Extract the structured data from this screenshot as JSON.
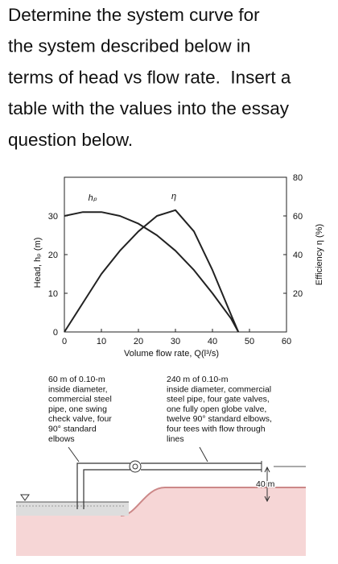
{
  "question": {
    "lines": [
      "Determine the system curve for",
      "the system described below in",
      "terms of head vs flow rate.  Insert a",
      "table with the values into the essay",
      "question below."
    ]
  },
  "chart_data": {
    "type": "line",
    "xlabel": "Volume flow rate, Q(l³/s)",
    "ylabel": "Head, hₚ (m)",
    "y2label": "Efficiency η (%)",
    "x": [
      0,
      5,
      10,
      15,
      20,
      25,
      30,
      35,
      40,
      45,
      47
    ],
    "series": [
      {
        "name": "hₚ",
        "color": "#222222",
        "values": [
          30,
          31,
          31,
          30,
          28,
          25,
          21,
          16,
          10,
          3.5,
          0
        ]
      },
      {
        "name": "η",
        "color": "#222222",
        "axis": "y2",
        "values": [
          0,
          15,
          30,
          42,
          52,
          60,
          63,
          52,
          32,
          9,
          0
        ]
      }
    ],
    "xlim": [
      0,
      60
    ],
    "xticks": [
      0,
      10,
      20,
      30,
      40,
      50,
      60
    ],
    "ylim": [
      0,
      40
    ],
    "yticks": [
      0,
      10,
      20,
      30
    ],
    "y2lim": [
      0,
      80
    ],
    "y2ticks": [
      20,
      40,
      60,
      80
    ],
    "grid": false
  },
  "diagram": {
    "left_note": [
      "60 m of 0.10-m",
      "inside diameter,",
      "commercial steel",
      "pipe, one swing",
      "check valve, four",
      "90° standard",
      "elbows"
    ],
    "right_note": [
      "240 m of 0.10-m",
      "inside diameter, commercial",
      "steel pipe, four gate valves,",
      "one fully open globe valve,",
      "twelve 90° standard elbows,",
      "four tees with flow through",
      "lines"
    ],
    "height": "40 m"
  }
}
